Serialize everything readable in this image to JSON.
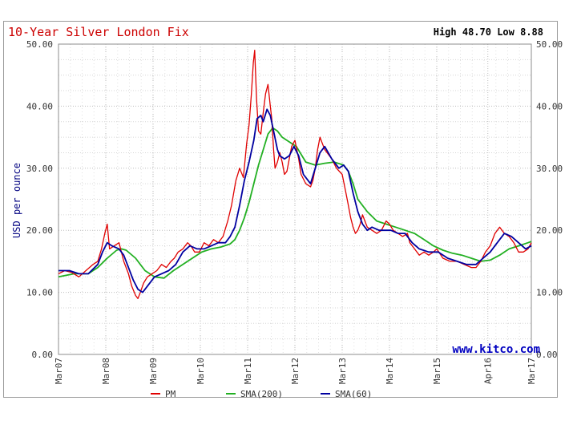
{
  "chart_data": {
    "type": "line",
    "title": "10-Year Silver London Fix",
    "summary": "High 48.70 Low 8.88",
    "ylabel": "USD per ounce",
    "ylim": [
      0,
      50
    ],
    "yticks": [
      "0.00",
      "10.00",
      "20.00",
      "30.00",
      "40.00",
      "50.00"
    ],
    "xlim": [
      2007.17,
      2017.17
    ],
    "xticks": [
      {
        "label": "Mar07",
        "x": 2007.17
      },
      {
        "label": "Mar08",
        "x": 2008.17
      },
      {
        "label": "Mar09",
        "x": 2009.17
      },
      {
        "label": "Mar10",
        "x": 2010.17
      },
      {
        "label": "Mar11",
        "x": 2011.17
      },
      {
        "label": "Mar12",
        "x": 2012.17
      },
      {
        "label": "Mar13",
        "x": 2013.17
      },
      {
        "label": "Mar14",
        "x": 2014.17
      },
      {
        "label": "Mar15",
        "x": 2015.17
      },
      {
        "label": "Apr16",
        "x": 2016.25
      },
      {
        "label": "Mar17",
        "x": 2017.17
      }
    ],
    "watermark": "www.kitco.com",
    "grid": true,
    "legend_position": "bottom",
    "series": [
      {
        "name": "PM",
        "color": "#e00000",
        "x": [
          2007.17,
          2007.3,
          2007.45,
          2007.6,
          2007.75,
          2007.9,
          2008.0,
          2008.08,
          2008.15,
          2008.2,
          2008.25,
          2008.35,
          2008.45,
          2008.5,
          2008.55,
          2008.65,
          2008.72,
          2008.8,
          2008.85,
          2008.9,
          2008.97,
          2009.05,
          2009.15,
          2009.25,
          2009.35,
          2009.45,
          2009.55,
          2009.62,
          2009.7,
          2009.8,
          2009.9,
          2009.97,
          2010.05,
          2010.15,
          2010.25,
          2010.35,
          2010.45,
          2010.55,
          2010.65,
          2010.75,
          2010.83,
          2010.92,
          2011.0,
          2011.08,
          2011.15,
          2011.2,
          2011.25,
          2011.29,
          2011.32,
          2011.36,
          2011.4,
          2011.45,
          2011.5,
          2011.55,
          2011.6,
          2011.65,
          2011.68,
          2011.72,
          2011.75,
          2011.8,
          2011.85,
          2011.9,
          2011.95,
          2012.0,
          2012.1,
          2012.17,
          2012.25,
          2012.3,
          2012.4,
          2012.5,
          2012.55,
          2012.6,
          2012.65,
          2012.7,
          2012.75,
          2012.8,
          2012.85,
          2012.95,
          2013.05,
          2013.17,
          2013.25,
          2013.3,
          2013.35,
          2013.4,
          2013.45,
          2013.5,
          2013.55,
          2013.6,
          2013.65,
          2013.7,
          2013.8,
          2013.9,
          2014.0,
          2014.1,
          2014.17,
          2014.25,
          2014.35,
          2014.45,
          2014.55,
          2014.6,
          2014.7,
          2014.8,
          2014.9,
          2015.0,
          2015.1,
          2015.17,
          2015.3,
          2015.45,
          2015.6,
          2015.75,
          2015.9,
          2016.0,
          2016.1,
          2016.2,
          2016.3,
          2016.4,
          2016.5,
          2016.6,
          2016.7,
          2016.8,
          2016.9,
          2017.0,
          2017.1,
          2017.17
        ],
        "values": [
          13.0,
          13.5,
          13.2,
          12.5,
          13.5,
          14.5,
          15.0,
          17.0,
          19.5,
          21.0,
          17.0,
          17.5,
          18.0,
          16.5,
          15.0,
          13.0,
          11.0,
          9.5,
          9.0,
          10.0,
          11.5,
          12.5,
          13.0,
          13.5,
          14.5,
          14.0,
          15.0,
          15.5,
          16.5,
          17.0,
          18.0,
          17.5,
          16.5,
          16.5,
          18.0,
          17.5,
          18.5,
          18.0,
          19.0,
          21.5,
          24.0,
          28.0,
          30.0,
          28.5,
          34.0,
          37.0,
          42.0,
          47.0,
          49.0,
          41.0,
          36.0,
          35.5,
          39.0,
          42.0,
          43.5,
          40.0,
          38.0,
          33.0,
          30.0,
          31.0,
          32.5,
          31.0,
          29.0,
          29.5,
          33.5,
          34.5,
          31.5,
          29.0,
          27.5,
          27.0,
          28.0,
          30.0,
          33.0,
          35.0,
          34.0,
          33.0,
          32.5,
          31.5,
          30.0,
          29.0,
          26.0,
          24.0,
          22.0,
          20.5,
          19.5,
          20.0,
          21.0,
          22.5,
          21.5,
          20.5,
          20.0,
          19.5,
          20.0,
          21.5,
          21.0,
          20.0,
          19.5,
          19.0,
          19.5,
          18.0,
          17.0,
          16.0,
          16.5,
          16.0,
          16.5,
          17.0,
          15.5,
          15.0,
          15.0,
          14.5,
          14.0,
          14.0,
          15.0,
          16.5,
          17.5,
          19.5,
          20.5,
          19.5,
          19.0,
          18.0,
          16.5,
          16.5,
          17.0,
          18.0
        ]
      },
      {
        "name": "SMA(200)",
        "color": "#22b022",
        "x": [
          2007.17,
          2007.5,
          2007.8,
          2008.0,
          2008.2,
          2008.4,
          2008.5,
          2008.6,
          2008.8,
          2008.9,
          2009.0,
          2009.2,
          2009.4,
          2009.6,
          2009.8,
          2010.0,
          2010.2,
          2010.4,
          2010.6,
          2010.8,
          2010.9,
          2011.0,
          2011.1,
          2011.2,
          2011.3,
          2011.4,
          2011.5,
          2011.6,
          2011.7,
          2011.8,
          2011.9,
          2012.0,
          2012.2,
          2012.4,
          2012.6,
          2012.8,
          2013.0,
          2013.2,
          2013.3,
          2013.4,
          2013.5,
          2013.7,
          2013.9,
          2014.1,
          2014.3,
          2014.5,
          2014.7,
          2014.9,
          2015.1,
          2015.3,
          2015.5,
          2015.7,
          2015.9,
          2016.1,
          2016.3,
          2016.5,
          2016.7,
          2016.9,
          2017.1,
          2017.17
        ],
        "values": [
          12.5,
          13.0,
          13.0,
          14.0,
          15.5,
          16.8,
          17.0,
          16.8,
          15.5,
          14.5,
          13.5,
          12.5,
          12.3,
          13.5,
          14.5,
          15.5,
          16.5,
          17.0,
          17.3,
          17.8,
          18.5,
          20.0,
          22.0,
          24.5,
          27.5,
          30.5,
          33.0,
          35.5,
          36.5,
          36.0,
          35.0,
          34.5,
          33.5,
          31.0,
          30.5,
          30.8,
          31.0,
          30.5,
          29.5,
          27.5,
          25.0,
          23.0,
          21.5,
          21.0,
          20.5,
          20.0,
          19.5,
          18.5,
          17.5,
          16.8,
          16.3,
          16.0,
          15.5,
          15.0,
          15.2,
          16.0,
          17.0,
          17.5,
          18.0,
          18.2
        ]
      },
      {
        "name": "SMA(60)",
        "color": "#0000a0",
        "x": [
          2007.17,
          2007.4,
          2007.6,
          2007.8,
          2008.0,
          2008.1,
          2008.2,
          2008.3,
          2008.45,
          2008.55,
          2008.65,
          2008.75,
          2008.85,
          2008.95,
          2009.05,
          2009.2,
          2009.35,
          2009.5,
          2009.65,
          2009.8,
          2009.95,
          2010.1,
          2010.25,
          2010.4,
          2010.55,
          2010.7,
          2010.8,
          2010.9,
          2011.0,
          2011.1,
          2011.2,
          2011.3,
          2011.37,
          2011.45,
          2011.5,
          2011.58,
          2011.65,
          2011.72,
          2011.8,
          2011.85,
          2011.95,
          2012.05,
          2012.15,
          2012.25,
          2012.35,
          2012.5,
          2012.6,
          2012.7,
          2012.8,
          2012.95,
          2013.1,
          2013.2,
          2013.3,
          2013.4,
          2013.5,
          2013.6,
          2013.7,
          2013.8,
          2013.95,
          2014.1,
          2014.2,
          2014.35,
          2014.5,
          2014.65,
          2014.8,
          2015.0,
          2015.2,
          2015.4,
          2015.6,
          2015.8,
          2016.0,
          2016.15,
          2016.3,
          2016.45,
          2016.6,
          2016.75,
          2016.9,
          2017.05,
          2017.17
        ],
        "values": [
          13.5,
          13.5,
          13.0,
          13.0,
          14.5,
          16.5,
          18.0,
          17.5,
          17.0,
          16.0,
          14.0,
          12.0,
          10.5,
          10.0,
          11.0,
          12.5,
          13.0,
          13.5,
          14.5,
          16.5,
          17.5,
          17.0,
          17.0,
          17.5,
          18.0,
          18.0,
          19.0,
          20.5,
          24.0,
          28.0,
          31.0,
          34.5,
          38.0,
          38.5,
          37.5,
          39.5,
          38.5,
          36.0,
          33.0,
          32.0,
          31.5,
          32.0,
          33.5,
          32.0,
          29.0,
          27.5,
          30.0,
          32.5,
          33.5,
          31.5,
          30.0,
          30.5,
          29.5,
          26.0,
          23.0,
          21.0,
          20.0,
          20.5,
          20.0,
          20.0,
          20.0,
          19.5,
          19.5,
          18.0,
          17.0,
          16.5,
          16.5,
          15.5,
          15.0,
          14.5,
          14.5,
          15.5,
          16.5,
          18.0,
          19.5,
          19.0,
          18.0,
          17.0,
          17.5
        ]
      }
    ]
  }
}
